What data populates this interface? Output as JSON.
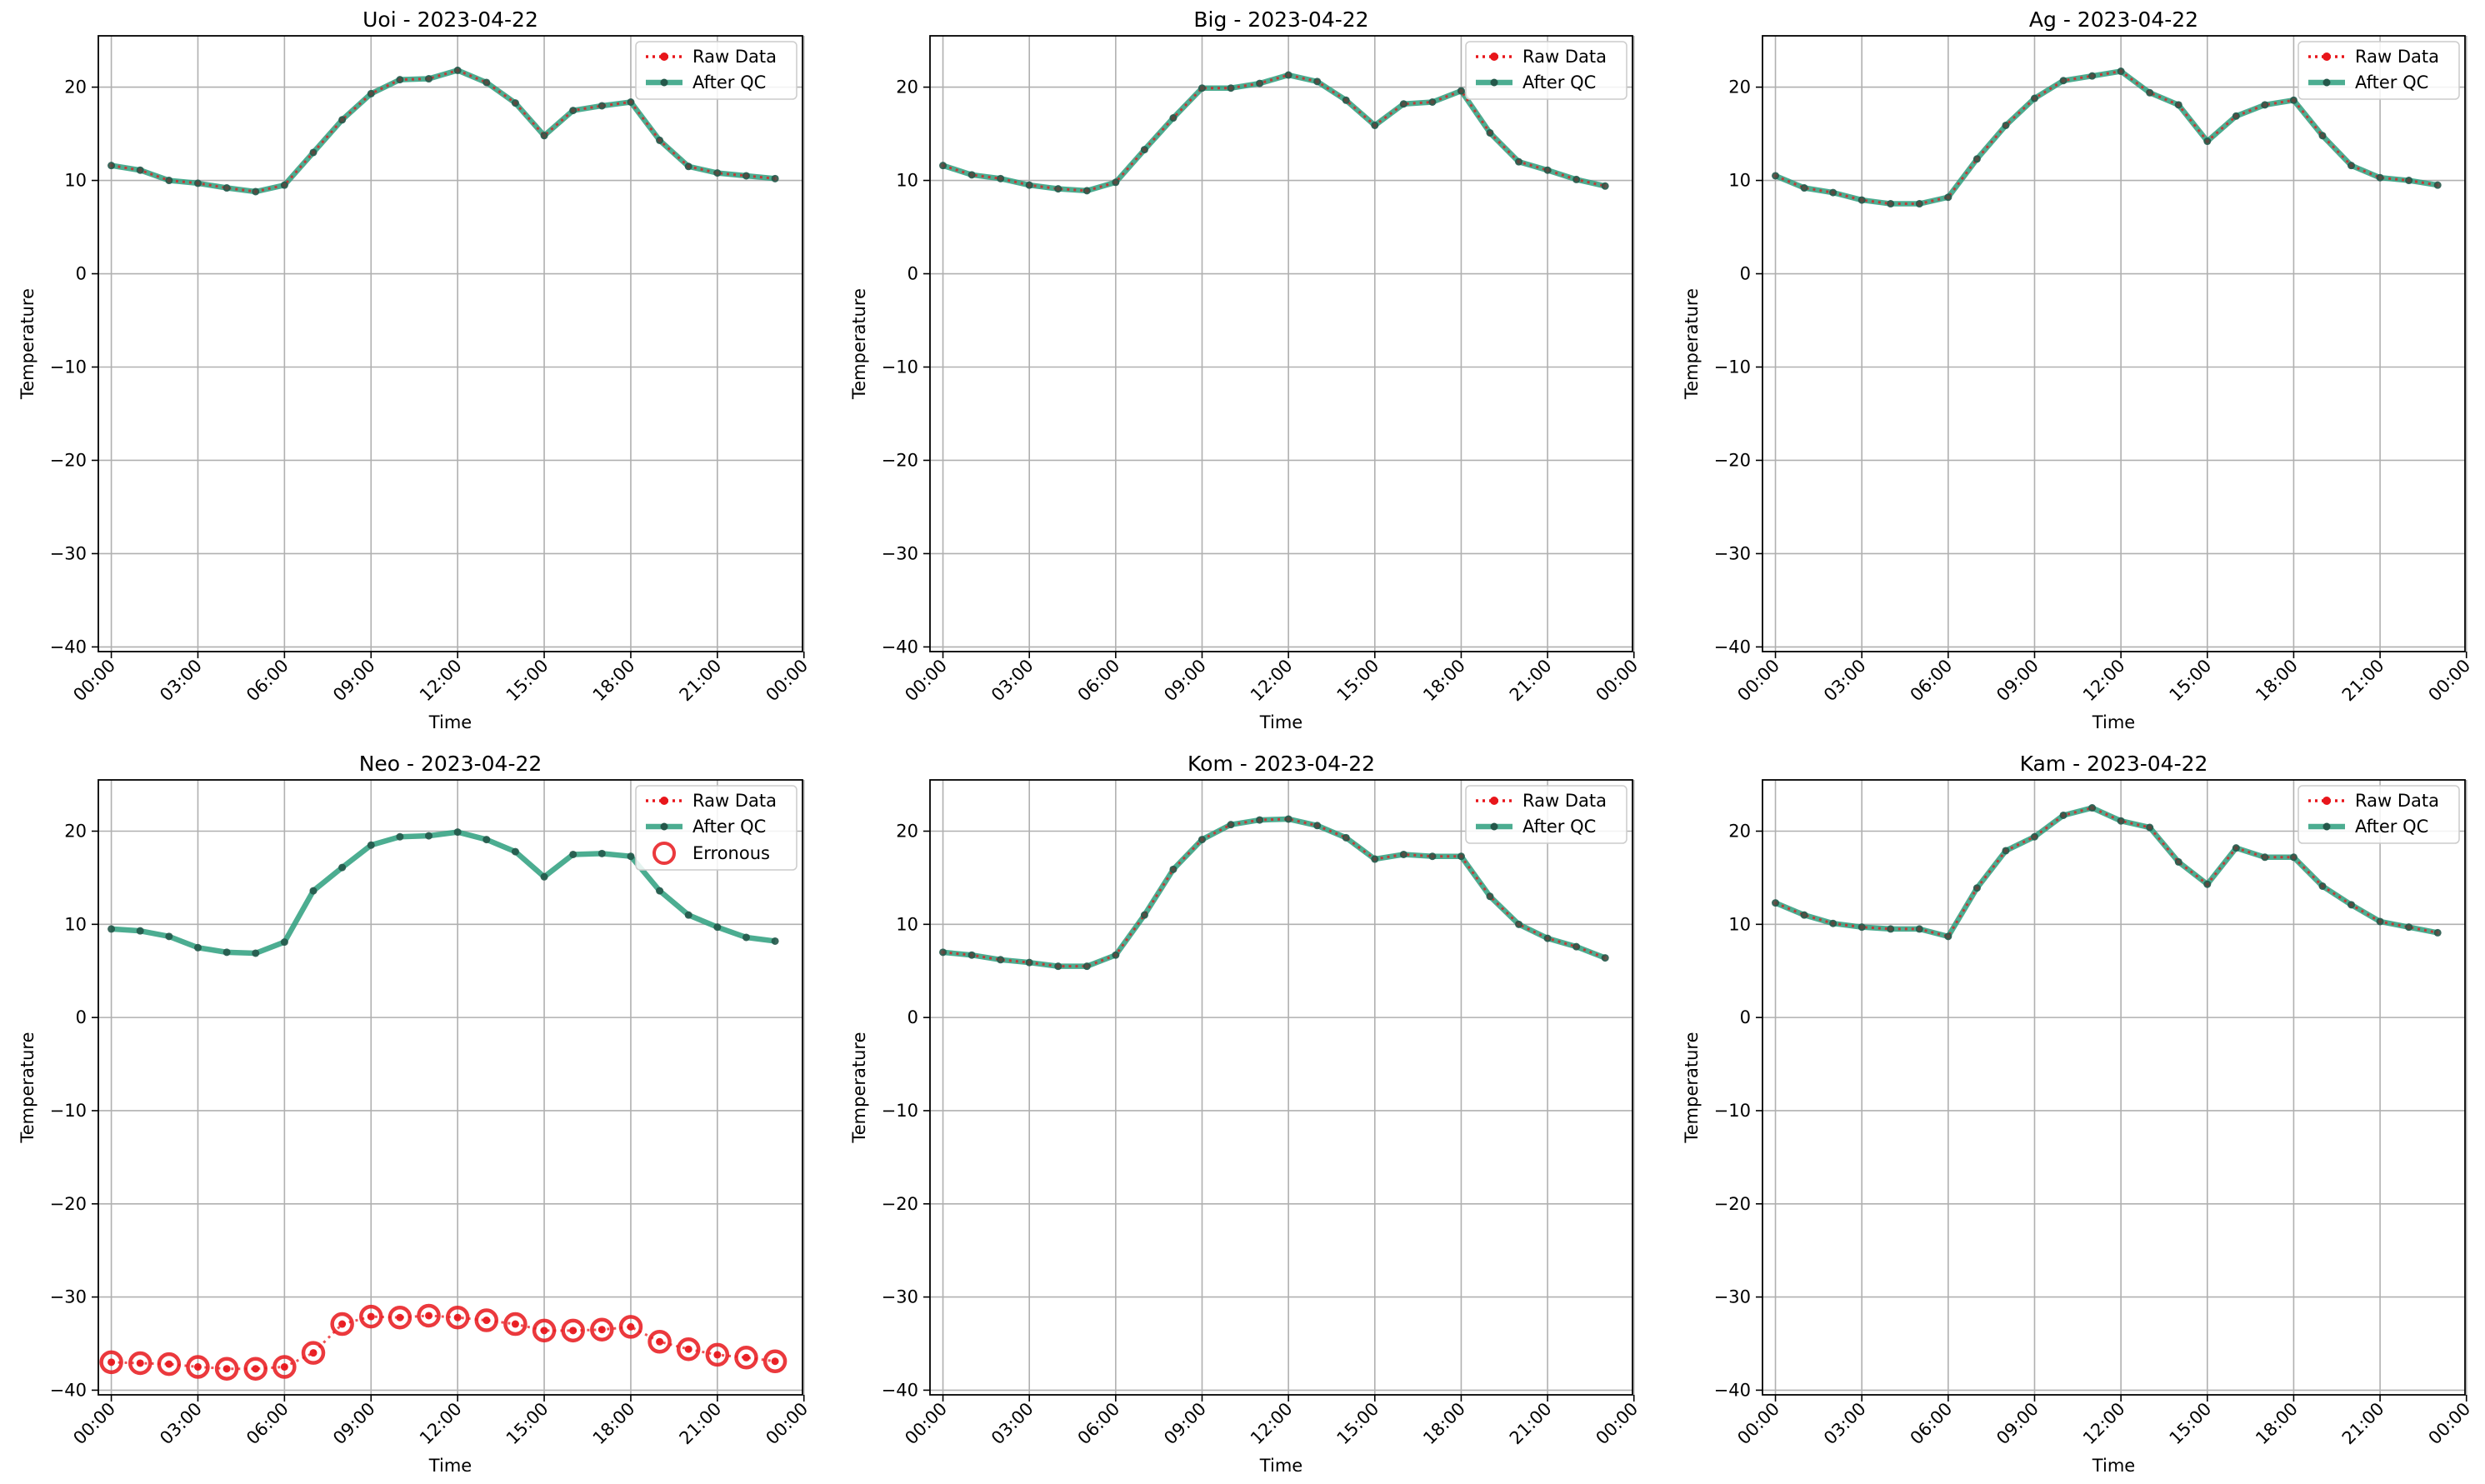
{
  "colors": {
    "raw": "#e8161b",
    "qc": "#2d9f7e",
    "qc_marker": "#24584a",
    "erroneous": "#e8161b",
    "grid": "#b0b0b0",
    "axis": "#000000"
  },
  "legend_labels": {
    "raw": "Raw Data",
    "qc": "After QC",
    "erroneous": "Erronous"
  },
  "chart_data": [
    {
      "type": "line",
      "title": "Uoi - 2023-04-22",
      "xlabel": "Time",
      "ylabel": "Temperature",
      "x": [
        "00:00",
        "01:00",
        "02:00",
        "03:00",
        "04:00",
        "05:00",
        "06:00",
        "07:00",
        "08:00",
        "09:00",
        "10:00",
        "11:00",
        "12:00",
        "13:00",
        "14:00",
        "15:00",
        "16:00",
        "17:00",
        "18:00",
        "19:00",
        "20:00",
        "21:00",
        "22:00",
        "23:00"
      ],
      "xticks": [
        "00:00",
        "03:00",
        "06:00",
        "09:00",
        "12:00",
        "15:00",
        "18:00",
        "21:00",
        "00:00"
      ],
      "yticks": [
        "20",
        "10",
        "0",
        "−10",
        "−20",
        "−30",
        "−40"
      ],
      "ylim": [
        -40.5,
        25.5
      ],
      "grid": true,
      "legend": "top-right",
      "series": [
        {
          "name": "Raw Data",
          "values": [
            11.6,
            11.1,
            10.0,
            9.7,
            9.2,
            8.8,
            9.5,
            13.0,
            16.5,
            19.3,
            20.8,
            20.9,
            21.8,
            20.5,
            18.3,
            14.8,
            17.5,
            18.0,
            18.4,
            14.3,
            11.5,
            10.8,
            10.5,
            10.2
          ]
        },
        {
          "name": "After QC",
          "values": [
            11.6,
            11.1,
            10.0,
            9.7,
            9.2,
            8.8,
            9.5,
            13.0,
            16.5,
            19.3,
            20.8,
            20.9,
            21.8,
            20.5,
            18.3,
            14.8,
            17.5,
            18.0,
            18.4,
            14.3,
            11.5,
            10.8,
            10.5,
            10.2
          ]
        }
      ]
    },
    {
      "type": "line",
      "title": "Big - 2023-04-22",
      "xlabel": "Time",
      "ylabel": "Temperature",
      "x": [
        "00:00",
        "01:00",
        "02:00",
        "03:00",
        "04:00",
        "05:00",
        "06:00",
        "07:00",
        "08:00",
        "09:00",
        "10:00",
        "11:00",
        "12:00",
        "13:00",
        "14:00",
        "15:00",
        "16:00",
        "17:00",
        "18:00",
        "19:00",
        "20:00",
        "21:00",
        "22:00",
        "23:00"
      ],
      "xticks": [
        "00:00",
        "03:00",
        "06:00",
        "09:00",
        "12:00",
        "15:00",
        "18:00",
        "21:00",
        "00:00"
      ],
      "yticks": [
        "20",
        "10",
        "0",
        "−10",
        "−20",
        "−30",
        "−40"
      ],
      "ylim": [
        -40.5,
        25.5
      ],
      "grid": true,
      "legend": "top-right",
      "series": [
        {
          "name": "Raw Data",
          "values": [
            11.6,
            10.6,
            10.2,
            9.5,
            9.1,
            8.9,
            9.8,
            13.3,
            16.7,
            19.9,
            19.9,
            20.4,
            21.3,
            20.6,
            18.6,
            15.9,
            18.2,
            18.4,
            19.6,
            15.1,
            12.0,
            11.1,
            10.1,
            9.4
          ]
        },
        {
          "name": "After QC",
          "values": [
            11.6,
            10.6,
            10.2,
            9.5,
            9.1,
            8.9,
            9.8,
            13.3,
            16.7,
            19.9,
            19.9,
            20.4,
            21.3,
            20.6,
            18.6,
            15.9,
            18.2,
            18.4,
            19.6,
            15.1,
            12.0,
            11.1,
            10.1,
            9.4
          ]
        }
      ]
    },
    {
      "type": "line",
      "title": "Ag - 2023-04-22",
      "xlabel": "Time",
      "ylabel": "Temperature",
      "x": [
        "00:00",
        "01:00",
        "02:00",
        "03:00",
        "04:00",
        "05:00",
        "06:00",
        "07:00",
        "08:00",
        "09:00",
        "10:00",
        "11:00",
        "12:00",
        "13:00",
        "14:00",
        "15:00",
        "16:00",
        "17:00",
        "18:00",
        "19:00",
        "20:00",
        "21:00",
        "22:00",
        "23:00"
      ],
      "xticks": [
        "00:00",
        "03:00",
        "06:00",
        "09:00",
        "12:00",
        "15:00",
        "18:00",
        "21:00",
        "00:00"
      ],
      "yticks": [
        "20",
        "10",
        "0",
        "−10",
        "−20",
        "−30",
        "−40"
      ],
      "ylim": [
        -40.5,
        25.5
      ],
      "grid": true,
      "legend": "top-right",
      "series": [
        {
          "name": "Raw Data",
          "values": [
            10.5,
            9.2,
            8.7,
            7.9,
            7.5,
            7.5,
            8.2,
            12.3,
            15.9,
            18.8,
            20.7,
            21.2,
            21.7,
            19.4,
            18.1,
            14.2,
            16.9,
            18.1,
            18.6,
            14.8,
            11.6,
            10.3,
            10.0,
            9.5
          ]
        },
        {
          "name": "After QC",
          "values": [
            10.5,
            9.2,
            8.7,
            7.9,
            7.5,
            7.5,
            8.2,
            12.3,
            15.9,
            18.8,
            20.7,
            21.2,
            21.7,
            19.4,
            18.1,
            14.2,
            16.9,
            18.1,
            18.6,
            14.8,
            11.6,
            10.3,
            10.0,
            9.5
          ]
        }
      ]
    },
    {
      "type": "line",
      "title": "Neo - 2023-04-22",
      "xlabel": "Time",
      "ylabel": "Temperature",
      "x": [
        "00:00",
        "01:00",
        "02:00",
        "03:00",
        "04:00",
        "05:00",
        "06:00",
        "07:00",
        "08:00",
        "09:00",
        "10:00",
        "11:00",
        "12:00",
        "13:00",
        "14:00",
        "15:00",
        "16:00",
        "17:00",
        "18:00",
        "19:00",
        "20:00",
        "21:00",
        "22:00",
        "23:00"
      ],
      "xticks": [
        "00:00",
        "03:00",
        "06:00",
        "09:00",
        "12:00",
        "15:00",
        "18:00",
        "21:00",
        "00:00"
      ],
      "yticks": [
        "20",
        "10",
        "0",
        "−10",
        "−20",
        "−30",
        "−40"
      ],
      "ylim": [
        -40.5,
        25.5
      ],
      "grid": true,
      "legend": "top-right",
      "series": [
        {
          "name": "Raw Data",
          "values": [
            -37.0,
            -37.1,
            -37.2,
            -37.5,
            -37.7,
            -37.7,
            -37.5,
            -36.0,
            -32.9,
            -32.1,
            -32.2,
            -32.0,
            -32.2,
            -32.5,
            -32.9,
            -33.6,
            -33.6,
            -33.5,
            -33.2,
            -34.8,
            -35.6,
            -36.2,
            -36.5,
            -36.9
          ]
        },
        {
          "name": "After QC",
          "values": [
            9.5,
            9.3,
            8.7,
            7.5,
            7.0,
            6.9,
            8.1,
            13.6,
            16.1,
            18.5,
            19.4,
            19.5,
            19.9,
            19.1,
            17.8,
            15.1,
            17.5,
            17.6,
            17.3,
            13.6,
            11.0,
            9.7,
            8.6,
            8.2
          ]
        },
        {
          "name": "Erronous",
          "values": [
            -37.0,
            -37.1,
            -37.2,
            -37.5,
            -37.7,
            -37.7,
            -37.5,
            -36.0,
            -32.9,
            -32.1,
            -32.2,
            -32.0,
            -32.2,
            -32.5,
            -32.9,
            -33.6,
            -33.6,
            -33.5,
            -33.2,
            -34.8,
            -35.6,
            -36.2,
            -36.5,
            -36.9
          ]
        }
      ]
    },
    {
      "type": "line",
      "title": "Kom - 2023-04-22",
      "xlabel": "Time",
      "ylabel": "Temperature",
      "x": [
        "00:00",
        "01:00",
        "02:00",
        "03:00",
        "04:00",
        "05:00",
        "06:00",
        "07:00",
        "08:00",
        "09:00",
        "10:00",
        "11:00",
        "12:00",
        "13:00",
        "14:00",
        "15:00",
        "16:00",
        "17:00",
        "18:00",
        "19:00",
        "20:00",
        "21:00",
        "22:00",
        "23:00"
      ],
      "xticks": [
        "00:00",
        "03:00",
        "06:00",
        "09:00",
        "12:00",
        "15:00",
        "18:00",
        "21:00",
        "00:00"
      ],
      "yticks": [
        "20",
        "10",
        "0",
        "−10",
        "−20",
        "−30",
        "−40"
      ],
      "ylim": [
        -40.5,
        25.5
      ],
      "grid": true,
      "legend": "top-right",
      "series": [
        {
          "name": "Raw Data",
          "values": [
            7.0,
            6.7,
            6.2,
            5.9,
            5.5,
            5.5,
            6.7,
            11.0,
            15.9,
            19.1,
            20.7,
            21.2,
            21.3,
            20.6,
            19.3,
            17.0,
            17.5,
            17.3,
            17.3,
            13.0,
            10.0,
            8.5,
            7.6,
            6.4
          ]
        },
        {
          "name": "After QC",
          "values": [
            7.0,
            6.7,
            6.2,
            5.9,
            5.5,
            5.5,
            6.7,
            11.0,
            15.9,
            19.1,
            20.7,
            21.2,
            21.3,
            20.6,
            19.3,
            17.0,
            17.5,
            17.3,
            17.3,
            13.0,
            10.0,
            8.5,
            7.6,
            6.4
          ]
        }
      ]
    },
    {
      "type": "line",
      "title": "Kam - 2023-04-22",
      "xlabel": "Time",
      "ylabel": "Temperature",
      "x": [
        "00:00",
        "01:00",
        "02:00",
        "03:00",
        "04:00",
        "05:00",
        "06:00",
        "07:00",
        "08:00",
        "09:00",
        "10:00",
        "11:00",
        "12:00",
        "13:00",
        "14:00",
        "15:00",
        "16:00",
        "17:00",
        "18:00",
        "19:00",
        "20:00",
        "21:00",
        "22:00",
        "23:00"
      ],
      "xticks": [
        "00:00",
        "03:00",
        "06:00",
        "09:00",
        "12:00",
        "15:00",
        "18:00",
        "21:00",
        "00:00"
      ],
      "yticks": [
        "20",
        "10",
        "0",
        "−10",
        "−20",
        "−30",
        "−40"
      ],
      "ylim": [
        -40.5,
        25.5
      ],
      "grid": true,
      "legend": "top-right",
      "series": [
        {
          "name": "Raw Data",
          "values": [
            12.3,
            11.0,
            10.1,
            9.7,
            9.5,
            9.5,
            8.7,
            13.9,
            17.9,
            19.4,
            21.7,
            22.5,
            21.1,
            20.4,
            16.7,
            14.3,
            18.2,
            17.2,
            17.2,
            14.1,
            12.1,
            10.3,
            9.7,
            9.1
          ]
        },
        {
          "name": "After QC",
          "values": [
            12.3,
            11.0,
            10.1,
            9.7,
            9.5,
            9.5,
            8.7,
            13.9,
            17.9,
            19.4,
            21.7,
            22.5,
            21.1,
            20.4,
            16.7,
            14.3,
            18.2,
            17.2,
            17.2,
            14.1,
            12.1,
            10.3,
            9.7,
            9.1
          ]
        }
      ]
    }
  ]
}
